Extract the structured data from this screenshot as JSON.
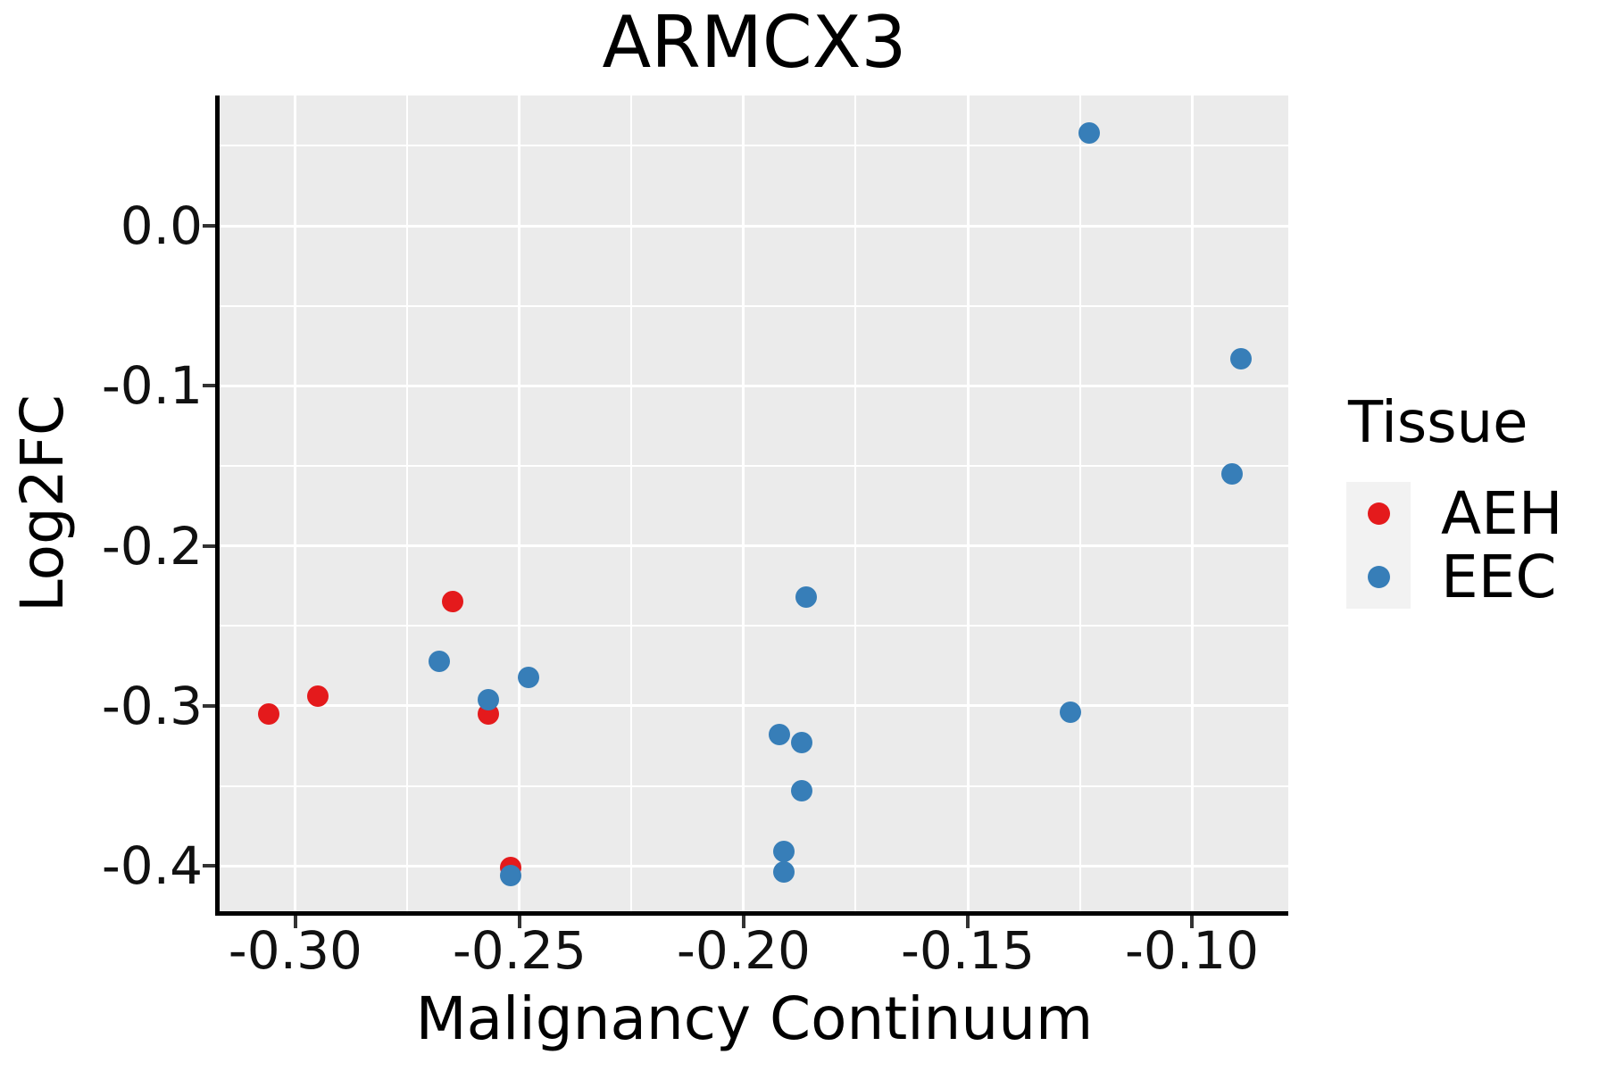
{
  "title": "ARMCX3",
  "chart_data": {
    "type": "scatter",
    "title": "ARMCX3",
    "xlabel": "Malignancy Continuum",
    "ylabel": "Log2FC",
    "xlim": [
      -0.3169,
      -0.0785
    ],
    "ylim": [
      -0.4283,
      0.0815
    ],
    "x_ticks": [
      -0.3,
      -0.25,
      -0.2,
      -0.15,
      -0.1
    ],
    "x_tick_labels": [
      "-0.30",
      "-0.25",
      "-0.20",
      "-0.15",
      "-0.10"
    ],
    "y_ticks": [
      0.0,
      -0.1,
      -0.2,
      -0.3,
      -0.4
    ],
    "y_tick_labels": [
      "0.0",
      "-0.1",
      "-0.2",
      "-0.3",
      "-0.4"
    ],
    "x_minor_ticks": [
      -0.275,
      -0.225,
      -0.175,
      -0.125
    ],
    "y_minor_ticks": [
      0.05,
      -0.05,
      -0.15,
      -0.25,
      -0.35
    ],
    "grid": true,
    "legend_position": "right",
    "panel_background": "#ebebeb",
    "series": [
      {
        "name": "AEH",
        "color": "#e41a1c",
        "points": [
          [
            -0.306,
            -0.305
          ],
          [
            -0.295,
            -0.294
          ],
          [
            -0.265,
            -0.235
          ],
          [
            -0.257,
            -0.305
          ],
          [
            -0.252,
            -0.401
          ]
        ]
      },
      {
        "name": "EEC",
        "color": "#377eb8",
        "points": [
          [
            -0.268,
            -0.272
          ],
          [
            -0.257,
            -0.296
          ],
          [
            -0.248,
            -0.282
          ],
          [
            -0.252,
            -0.406
          ],
          [
            -0.186,
            -0.232
          ],
          [
            -0.192,
            -0.318
          ],
          [
            -0.187,
            -0.323
          ],
          [
            -0.187,
            -0.353
          ],
          [
            -0.191,
            -0.391
          ],
          [
            -0.191,
            -0.404
          ],
          [
            -0.123,
            0.058
          ],
          [
            -0.089,
            -0.083
          ],
          [
            -0.091,
            -0.155
          ],
          [
            -0.127,
            -0.304
          ]
        ]
      }
    ]
  },
  "legend": {
    "title": "Tissue",
    "entries": [
      {
        "label": "AEH",
        "color": "#e41a1c"
      },
      {
        "label": "EEC",
        "color": "#377eb8"
      }
    ]
  },
  "colors": {
    "aeh": "#e41a1c",
    "eec": "#377eb8",
    "panel": "#ebebeb",
    "grid": "#ffffff",
    "axis": "#000000",
    "tick": "#333333"
  }
}
